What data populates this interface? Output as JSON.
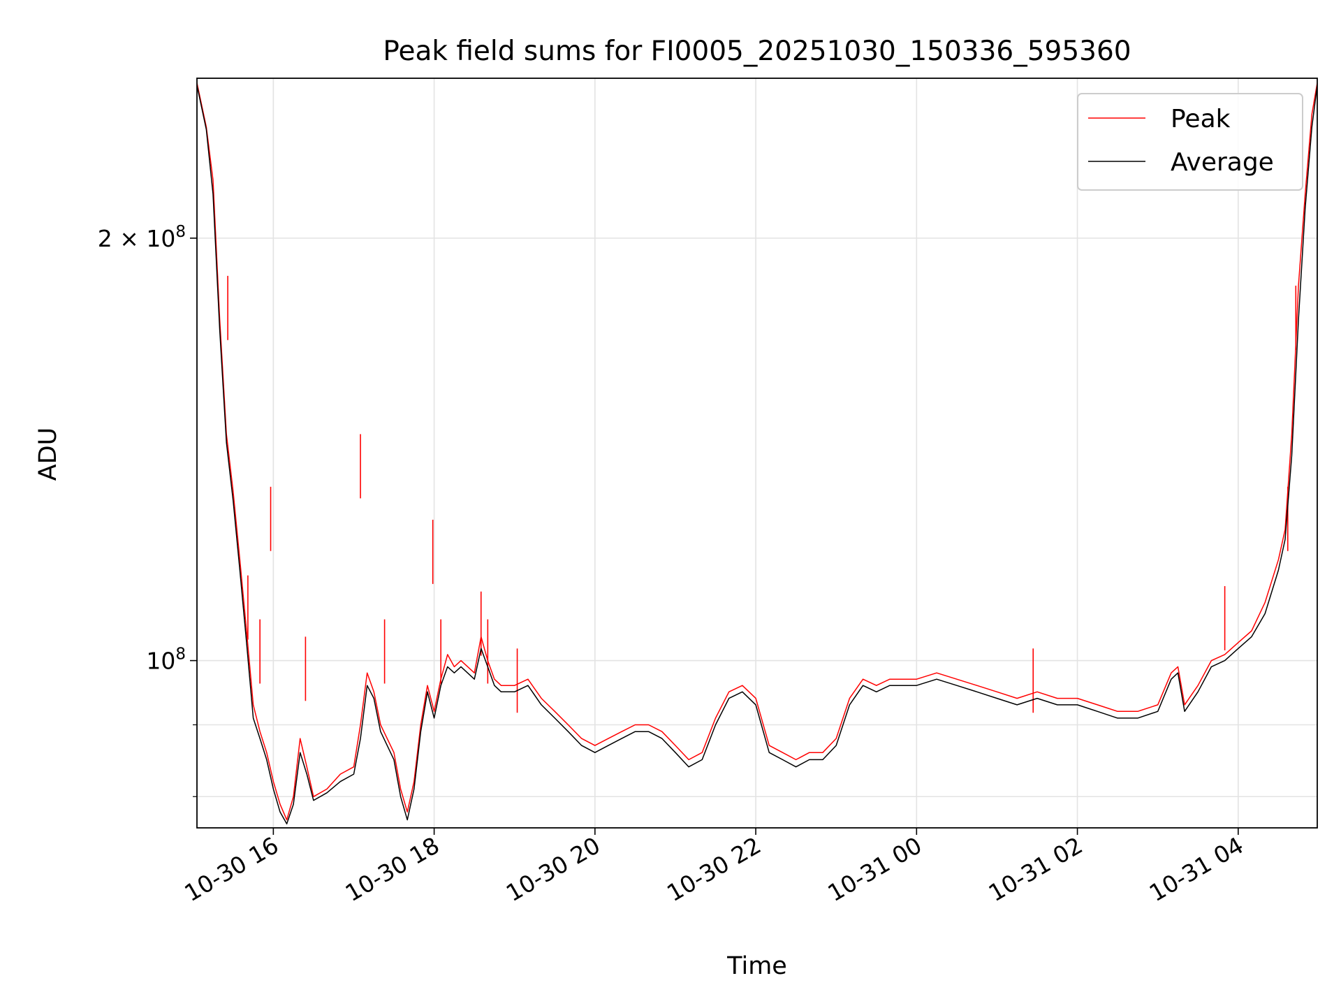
{
  "chart_data": {
    "type": "line",
    "title": "Peak field sums for FI0005_20251030_150336_595360",
    "xlabel": "Time",
    "ylabel": "ADU",
    "y_scale": "log",
    "ylim": [
      76000000,
      260000000
    ],
    "xlim": [
      "2025-10-30 15:03",
      "2025-10-31 04:59"
    ],
    "x_ticks": [
      {
        "value": "2025-10-30 16:00",
        "label": "10-30 16"
      },
      {
        "value": "2025-10-30 18:00",
        "label": "10-30 18"
      },
      {
        "value": "2025-10-30 20:00",
        "label": "10-30 20"
      },
      {
        "value": "2025-10-30 22:00",
        "label": "10-30 22"
      },
      {
        "value": "2025-10-31 00:00",
        "label": "10-31 00"
      },
      {
        "value": "2025-10-31 02:00",
        "label": "10-31 02"
      },
      {
        "value": "2025-10-31 04:00",
        "label": "10-31 04"
      }
    ],
    "y_major_ticks": [
      {
        "value": 100000000,
        "base": "10",
        "exp": "8"
      },
      {
        "value": 200000000,
        "base": "2 × 10",
        "exp": "8"
      }
    ],
    "y_minor_ticks": [
      80000000,
      90000000
    ],
    "grid": true,
    "legend_position": "top-right",
    "series": [
      {
        "name": "Peak",
        "color": "#ff0000",
        "x": [
          "2025-10-30 15:03",
          "2025-10-30 15:10",
          "2025-10-30 15:15",
          "2025-10-30 15:20",
          "2025-10-30 15:25",
          "2025-10-30 15:30",
          "2025-10-30 15:35",
          "2025-10-30 15:40",
          "2025-10-30 15:45",
          "2025-10-30 15:50",
          "2025-10-30 15:55",
          "2025-10-30 16:00",
          "2025-10-30 16:05",
          "2025-10-30 16:10",
          "2025-10-30 16:15",
          "2025-10-30 16:20",
          "2025-10-30 16:25",
          "2025-10-30 16:30",
          "2025-10-30 16:40",
          "2025-10-30 16:50",
          "2025-10-30 17:00",
          "2025-10-30 17:05",
          "2025-10-30 17:10",
          "2025-10-30 17:15",
          "2025-10-30 17:20",
          "2025-10-30 17:30",
          "2025-10-30 17:35",
          "2025-10-30 17:40",
          "2025-10-30 17:45",
          "2025-10-30 17:50",
          "2025-10-30 17:55",
          "2025-10-30 18:00",
          "2025-10-30 18:05",
          "2025-10-30 18:10",
          "2025-10-30 18:15",
          "2025-10-30 18:20",
          "2025-10-30 18:30",
          "2025-10-30 18:35",
          "2025-10-30 18:40",
          "2025-10-30 18:45",
          "2025-10-30 18:50",
          "2025-10-30 19:00",
          "2025-10-30 19:10",
          "2025-10-30 19:20",
          "2025-10-30 19:30",
          "2025-10-30 19:40",
          "2025-10-30 19:50",
          "2025-10-30 20:00",
          "2025-10-30 20:10",
          "2025-10-30 20:20",
          "2025-10-30 20:30",
          "2025-10-30 20:40",
          "2025-10-30 20:50",
          "2025-10-30 21:00",
          "2025-10-30 21:10",
          "2025-10-30 21:20",
          "2025-10-30 21:30",
          "2025-10-30 21:40",
          "2025-10-30 21:50",
          "2025-10-30 22:00",
          "2025-10-30 22:10",
          "2025-10-30 22:20",
          "2025-10-30 22:30",
          "2025-10-30 22:40",
          "2025-10-30 22:50",
          "2025-10-30 23:00",
          "2025-10-30 23:10",
          "2025-10-30 23:20",
          "2025-10-30 23:30",
          "2025-10-30 23:40",
          "2025-10-30 23:50",
          "2025-10-31 00:00",
          "2025-10-31 00:15",
          "2025-10-31 00:30",
          "2025-10-31 00:45",
          "2025-10-31 01:00",
          "2025-10-31 01:15",
          "2025-10-31 01:30",
          "2025-10-31 01:45",
          "2025-10-31 02:00",
          "2025-10-31 02:15",
          "2025-10-31 02:30",
          "2025-10-31 02:45",
          "2025-10-31 03:00",
          "2025-10-31 03:10",
          "2025-10-31 03:15",
          "2025-10-31 03:20",
          "2025-10-31 03:30",
          "2025-10-31 03:40",
          "2025-10-31 03:50",
          "2025-10-31 04:00",
          "2025-10-31 04:10",
          "2025-10-31 04:20",
          "2025-10-31 04:30",
          "2025-10-31 04:35",
          "2025-10-31 04:40",
          "2025-10-31 04:45",
          "2025-10-31 04:50",
          "2025-10-31 04:55",
          "2025-10-31 04:59"
        ],
        "y": [
          258000000,
          240000000,
          220000000,
          175000000,
          145000000,
          132000000,
          118000000,
          105000000,
          93000000,
          89000000,
          86000000,
          82000000,
          79000000,
          77000000,
          80000000,
          88000000,
          84000000,
          80000000,
          81000000,
          83000000,
          84000000,
          90000000,
          98000000,
          95000000,
          90000000,
          86000000,
          81000000,
          78000000,
          82000000,
          90000000,
          96000000,
          92000000,
          97000000,
          101000000,
          99000000,
          100000000,
          98000000,
          104000000,
          100000000,
          97000000,
          96000000,
          96000000,
          97000000,
          94000000,
          92000000,
          90000000,
          88000000,
          87000000,
          88000000,
          89000000,
          90000000,
          90000000,
          89000000,
          87000000,
          85000000,
          86000000,
          91000000,
          95000000,
          96000000,
          94000000,
          87000000,
          86000000,
          85000000,
          86000000,
          86000000,
          88000000,
          94000000,
          97000000,
          96000000,
          97000000,
          97000000,
          97000000,
          98000000,
          97000000,
          96000000,
          95000000,
          94000000,
          95000000,
          94000000,
          94000000,
          93000000,
          92000000,
          92000000,
          93000000,
          98000000,
          99000000,
          93000000,
          96000000,
          100000000,
          101000000,
          103000000,
          105000000,
          110000000,
          118000000,
          124000000,
          145000000,
          185000000,
          215000000,
          245000000,
          258000000
        ]
      },
      {
        "name": "Average",
        "color": "#000000",
        "x": [
          "2025-10-30 15:03",
          "2025-10-30 15:10",
          "2025-10-30 15:15",
          "2025-10-30 15:20",
          "2025-10-30 15:25",
          "2025-10-30 15:30",
          "2025-10-30 15:35",
          "2025-10-30 15:40",
          "2025-10-30 15:45",
          "2025-10-30 15:50",
          "2025-10-30 15:55",
          "2025-10-30 16:00",
          "2025-10-30 16:05",
          "2025-10-30 16:10",
          "2025-10-30 16:15",
          "2025-10-30 16:20",
          "2025-10-30 16:25",
          "2025-10-30 16:30",
          "2025-10-30 16:40",
          "2025-10-30 16:50",
          "2025-10-30 17:00",
          "2025-10-30 17:05",
          "2025-10-30 17:10",
          "2025-10-30 17:15",
          "2025-10-30 17:20",
          "2025-10-30 17:30",
          "2025-10-30 17:35",
          "2025-10-30 17:40",
          "2025-10-30 17:45",
          "2025-10-30 17:50",
          "2025-10-30 17:55",
          "2025-10-30 18:00",
          "2025-10-30 18:05",
          "2025-10-30 18:10",
          "2025-10-30 18:15",
          "2025-10-30 18:20",
          "2025-10-30 18:30",
          "2025-10-30 18:35",
          "2025-10-30 18:40",
          "2025-10-30 18:45",
          "2025-10-30 18:50",
          "2025-10-30 19:00",
          "2025-10-30 19:10",
          "2025-10-30 19:20",
          "2025-10-30 19:30",
          "2025-10-30 19:40",
          "2025-10-30 19:50",
          "2025-10-30 20:00",
          "2025-10-30 20:10",
          "2025-10-30 20:20",
          "2025-10-30 20:30",
          "2025-10-30 20:40",
          "2025-10-30 20:50",
          "2025-10-30 21:00",
          "2025-10-30 21:10",
          "2025-10-30 21:20",
          "2025-10-30 21:30",
          "2025-10-30 21:40",
          "2025-10-30 21:50",
          "2025-10-30 22:00",
          "2025-10-30 22:10",
          "2025-10-30 22:20",
          "2025-10-30 22:30",
          "2025-10-30 22:40",
          "2025-10-30 22:50",
          "2025-10-30 23:00",
          "2025-10-30 23:10",
          "2025-10-30 23:20",
          "2025-10-30 23:30",
          "2025-10-30 23:40",
          "2025-10-30 23:50",
          "2025-10-31 00:00",
          "2025-10-31 00:15",
          "2025-10-31 00:30",
          "2025-10-31 00:45",
          "2025-10-31 01:00",
          "2025-10-31 01:15",
          "2025-10-31 01:30",
          "2025-10-31 01:45",
          "2025-10-31 02:00",
          "2025-10-31 02:15",
          "2025-10-31 02:30",
          "2025-10-31 02:45",
          "2025-10-31 03:00",
          "2025-10-31 03:10",
          "2025-10-31 03:15",
          "2025-10-31 03:20",
          "2025-10-31 03:30",
          "2025-10-31 03:40",
          "2025-10-31 03:50",
          "2025-10-31 04:00",
          "2025-10-31 04:10",
          "2025-10-31 04:20",
          "2025-10-31 04:30",
          "2025-10-31 04:35",
          "2025-10-31 04:40",
          "2025-10-31 04:45",
          "2025-10-31 04:50",
          "2025-10-31 04:55",
          "2025-10-31 04:59"
        ],
        "y": [
          257000000,
          239000000,
          215000000,
          172000000,
          143000000,
          130000000,
          116000000,
          103000000,
          91000000,
          88000000,
          85000000,
          81000000,
          78000000,
          76500000,
          79000000,
          86000000,
          83000000,
          79500000,
          80500000,
          82000000,
          83000000,
          88000000,
          96000000,
          94000000,
          89000000,
          85000000,
          80000000,
          77000000,
          81000000,
          89000000,
          95000000,
          91000000,
          96000000,
          99000000,
          98000000,
          99000000,
          97000000,
          102000000,
          99000000,
          96000000,
          95000000,
          95000000,
          96000000,
          93000000,
          91000000,
          89000000,
          87000000,
          86000000,
          87000000,
          88000000,
          89000000,
          89000000,
          88000000,
          86000000,
          84000000,
          85000000,
          90000000,
          94000000,
          95000000,
          93000000,
          86000000,
          85000000,
          84000000,
          85000000,
          85000000,
          87000000,
          93000000,
          96000000,
          95000000,
          96000000,
          96000000,
          96000000,
          97000000,
          96000000,
          95000000,
          94000000,
          93000000,
          94000000,
          93000000,
          93000000,
          92000000,
          91000000,
          91000000,
          92000000,
          97000000,
          98000000,
          92000000,
          95000000,
          99000000,
          100000000,
          102000000,
          104000000,
          108000000,
          116000000,
          122000000,
          140000000,
          175000000,
          210000000,
          240000000,
          257000000
        ]
      }
    ],
    "spikes": {
      "name": "Peak",
      "color": "#ff0000",
      "x": [
        "2025-10-30 15:26",
        "2025-10-30 15:41",
        "2025-10-30 15:50",
        "2025-10-30 15:58",
        "2025-10-30 16:24",
        "2025-10-30 17:05",
        "2025-10-30 17:23",
        "2025-10-30 17:59",
        "2025-10-30 18:05",
        "2025-10-30 18:35",
        "2025-10-30 18:40",
        "2025-10-30 19:02",
        "2025-10-31 01:27",
        "2025-10-31 03:50",
        "2025-10-31 04:37",
        "2025-10-31 04:43"
      ],
      "y": [
        188000000,
        115000000,
        107000000,
        133000000,
        104000000,
        145000000,
        107000000,
        126000000,
        107000000,
        112000000,
        107000000,
        102000000,
        102000000,
        113000000,
        133000000,
        185000000
      ]
    }
  }
}
